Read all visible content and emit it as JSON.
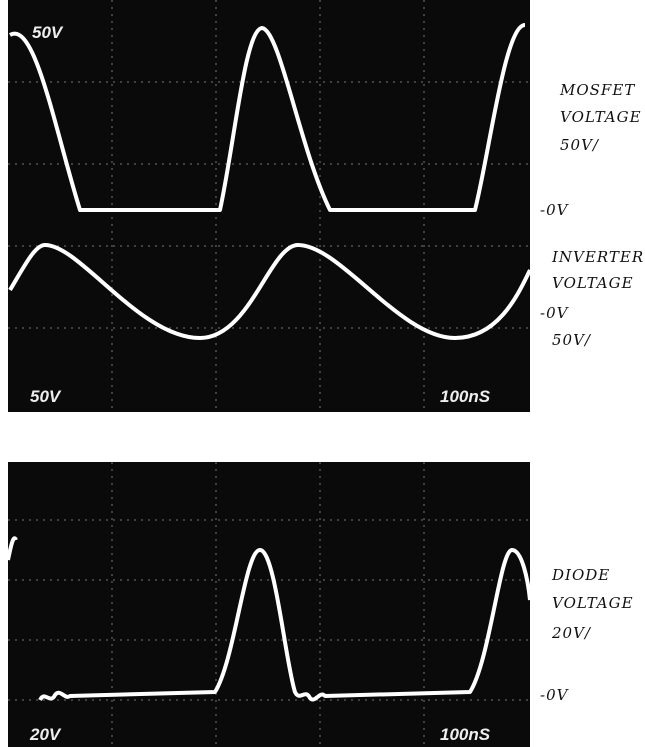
{
  "top_panel": {
    "corner_label": "50V",
    "vertical_scale": "50V",
    "time_scale": "100nS"
  },
  "bottom_panel": {
    "vertical_scale": "20V",
    "time_scale": "100nS"
  },
  "annotations": {
    "mosfet": {
      "line1": "MOSFET",
      "line2": "VOLTAGE",
      "scale": "50V/",
      "zero": "-0V"
    },
    "inverter": {
      "line1": "INVERTER",
      "line2": "VOLTAGE",
      "zero": "-0V",
      "scale": "50V/"
    },
    "diode": {
      "line1": "DIODE",
      "line2": "VOLTAGE",
      "scale": "20V/",
      "zero": "-0V"
    }
  }
}
